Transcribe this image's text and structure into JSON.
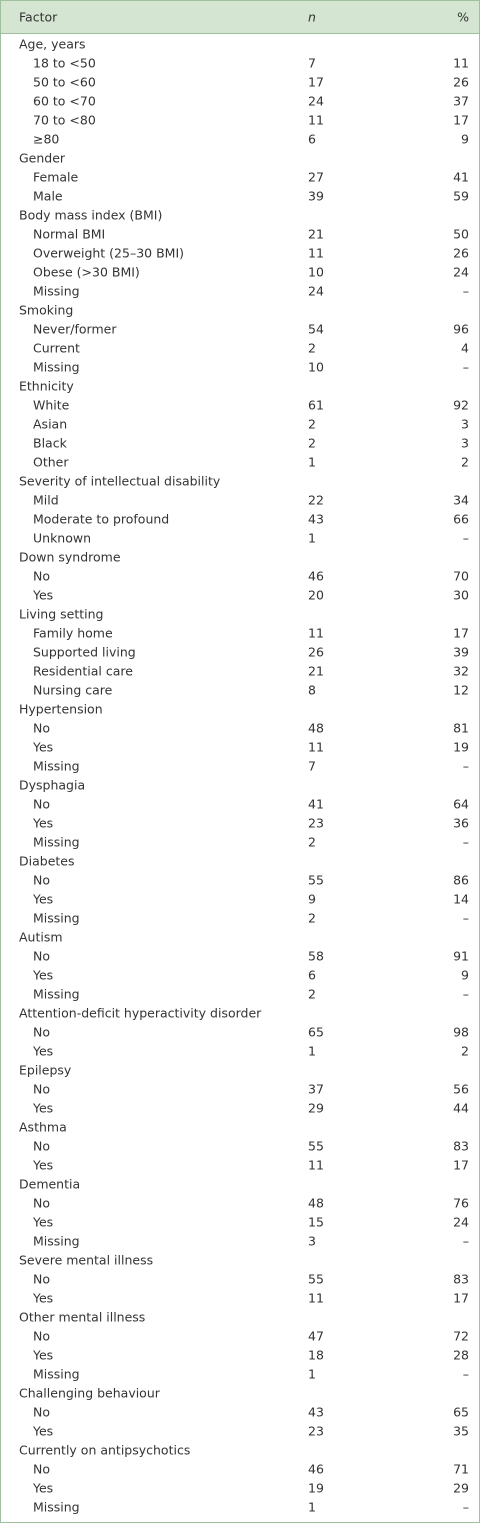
{
  "table": {
    "header": [
      "Factor",
      "n",
      "%"
    ],
    "rows": [
      [
        "Age, years"
      ],
      [
        "18 to <50",
        7,
        11
      ],
      [
        "50 to <60",
        17,
        26
      ],
      [
        "60 to <70",
        24,
        37
      ],
      [
        "70 to <80",
        11,
        17
      ],
      [
        "≥80",
        6,
        9
      ],
      [
        "Gender"
      ],
      [
        "Female",
        27,
        41
      ],
      [
        "Male",
        39,
        59
      ],
      [
        "Body mass index (BMI)"
      ],
      [
        "Normal BMI",
        21,
        50
      ],
      [
        "Overweight (25–30 BMI)",
        11,
        26
      ],
      [
        "Obese (>30 BMI)",
        10,
        24
      ],
      [
        "Missing",
        24,
        "–"
      ],
      [
        "Smoking"
      ],
      [
        "Never/former",
        54,
        96
      ],
      [
        "Current",
        2,
        4
      ],
      [
        "Missing",
        10,
        "–"
      ],
      [
        "Ethnicity"
      ],
      [
        "White",
        61,
        92
      ],
      [
        "Asian",
        2,
        3
      ],
      [
        "Black",
        2,
        3
      ],
      [
        "Other",
        1,
        2
      ],
      [
        "Severity of intellectual disability"
      ],
      [
        "Mild",
        22,
        34
      ],
      [
        "Moderate to profound",
        43,
        66
      ],
      [
        "Unknown",
        1,
        "–"
      ],
      [
        "Down syndrome"
      ],
      [
        "No",
        46,
        70
      ],
      [
        "Yes",
        20,
        30
      ],
      [
        "Living setting"
      ],
      [
        "Family home",
        11,
        17
      ],
      [
        "Supported living",
        26,
        39
      ],
      [
        "Residential care",
        21,
        32
      ],
      [
        "Nursing care",
        8,
        12
      ],
      [
        "Hypertension"
      ],
      [
        "No",
        48,
        81
      ],
      [
        "Yes",
        11,
        19
      ],
      [
        "Missing",
        7,
        "–"
      ],
      [
        "Dysphagia"
      ],
      [
        "No",
        41,
        64
      ],
      [
        "Yes",
        23,
        36
      ],
      [
        "Missing",
        2,
        "–"
      ],
      [
        "Diabetes"
      ],
      [
        "No",
        55,
        86
      ],
      [
        "Yes",
        9,
        14
      ],
      [
        "Missing",
        2,
        "–"
      ],
      [
        "Autism"
      ],
      [
        "No",
        58,
        91
      ],
      [
        "Yes",
        6,
        9
      ],
      [
        "Missing",
        2,
        "–"
      ],
      [
        "Attention-deficit hyperactivity disorder"
      ],
      [
        "No",
        65,
        98
      ],
      [
        "Yes",
        1,
        2
      ],
      [
        "Epilepsy"
      ],
      [
        "No",
        37,
        56
      ],
      [
        "Yes",
        29,
        44
      ],
      [
        "Asthma"
      ],
      [
        "No",
        55,
        83
      ],
      [
        "Yes",
        11,
        17
      ],
      [
        "Dementia"
      ],
      [
        "No",
        48,
        76
      ],
      [
        "Yes",
        15,
        24
      ],
      [
        "Missing",
        3,
        "–"
      ],
      [
        "Severe mental illness"
      ],
      [
        "No",
        55,
        83
      ],
      [
        "Yes",
        11,
        17
      ],
      [
        "Other mental illness"
      ],
      [
        "No",
        47,
        72
      ],
      [
        "Yes",
        18,
        28
      ],
      [
        "Missing",
        1,
        "–"
      ],
      [
        "Challenging behaviour"
      ],
      [
        "No",
        43,
        65
      ],
      [
        "Yes",
        23,
        35
      ],
      [
        "Currently on antipsychotics"
      ],
      [
        "No",
        46,
        71
      ],
      [
        "Yes",
        19,
        29
      ],
      [
        "Missing",
        1,
        "–"
      ]
    ]
  }
}
